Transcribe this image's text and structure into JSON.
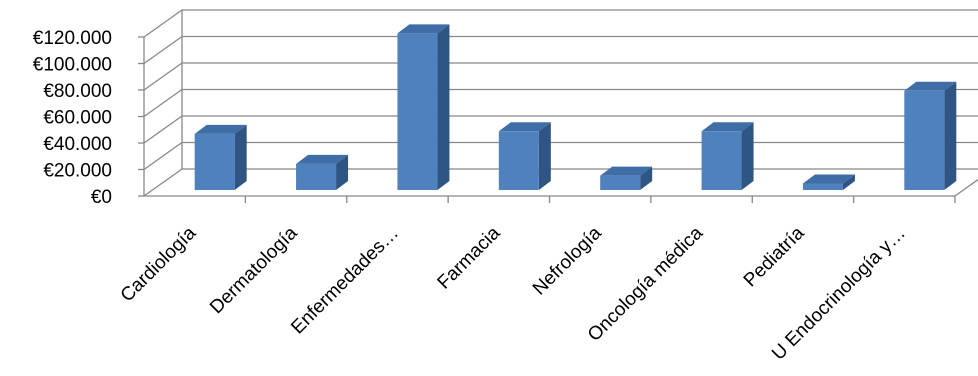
{
  "chart_data": {
    "type": "bar",
    "style": "3d-column",
    "categories": [
      "Cardiología",
      "Dermatología",
      "Enfermedades…",
      "Farmacia",
      "Nefrología",
      "Oncología médica",
      "Pediatría",
      "U Endocrinología y…"
    ],
    "values": [
      43000,
      20000,
      120000,
      45000,
      11000,
      45000,
      5000,
      76000
    ],
    "y_tick_labels": [
      "€0",
      "€20.000",
      "€40.000",
      "€60.000",
      "€80.000",
      "€100.000",
      "€120.000"
    ],
    "y_ticks": [
      0,
      20000,
      40000,
      60000,
      80000,
      100000,
      120000
    ],
    "ylim": [
      0,
      120000
    ],
    "grid": true,
    "legend": "none",
    "title": "",
    "xlabel": "",
    "ylabel": "",
    "colors": {
      "bar_front": "#4f81bd",
      "bar_side": "#2e5584",
      "bar_top": "#3f6ea6",
      "grid": "#888888",
      "axis": "#888888"
    }
  }
}
